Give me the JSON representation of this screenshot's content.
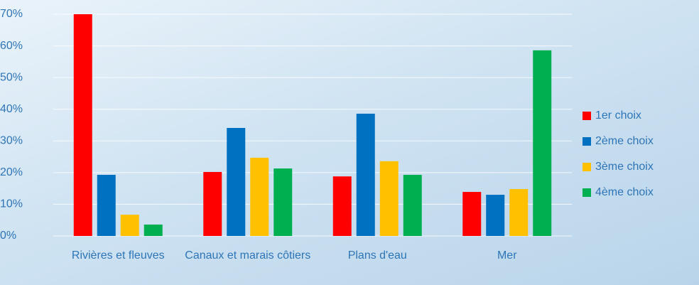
{
  "chart_data": {
    "type": "bar",
    "categories": [
      "Rivières et fleuves",
      "Canaux et marais côtiers",
      "Plans d'eau",
      "Mer"
    ],
    "series": [
      {
        "name": "1er choix",
        "color": "#ff0000",
        "values": [
          70,
          20.2,
          18.8,
          13.9
        ]
      },
      {
        "name": "2ème choix",
        "color": "#0070c0",
        "values": [
          19.3,
          34.1,
          38.6,
          13
        ]
      },
      {
        "name": "3ème choix",
        "color": "#ffc000",
        "values": [
          6.7,
          24.7,
          23.6,
          14.8
        ]
      },
      {
        "name": "4ème choix",
        "color": "#00b050",
        "values": [
          3.6,
          21.3,
          19.3,
          58.6
        ]
      }
    ],
    "ylim": [
      0,
      70
    ],
    "yticks": [
      {
        "value": 0,
        "label": "0%"
      },
      {
        "value": 10,
        "label": "10%"
      },
      {
        "value": 20,
        "label": "20%"
      },
      {
        "value": 30,
        "label": "30%"
      },
      {
        "value": 40,
        "label": "40%"
      },
      {
        "value": 50,
        "label": "50%"
      },
      {
        "value": 60,
        "label": "60%"
      },
      {
        "value": 70,
        "label": "70%"
      }
    ],
    "grid": true,
    "legend": "right"
  }
}
